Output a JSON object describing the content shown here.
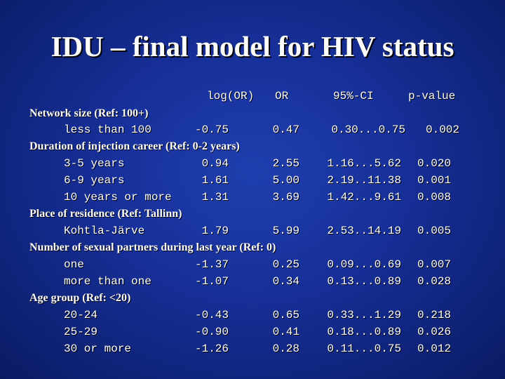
{
  "title": "IDU – final model for HIV status",
  "header": {
    "log_or": "log(OR)",
    "or": "OR",
    "ci": "95%-CI",
    "p": "p-value"
  },
  "groups": [
    {
      "label": "Network size (Ref: 100+)",
      "rows": [
        {
          "label": "less than 100",
          "log_or": "-0.75",
          "or": "0.47",
          "ci": "0.30...0.75",
          "p": "0.002"
        }
      ]
    },
    {
      "label": "Duration of injection career (Ref: 0-2 years)",
      "rows": [
        {
          "label": "3-5 years",
          "log_or": "0.94",
          "or": "2.55",
          "ci": "1.16...5.62",
          "p": "0.020"
        },
        {
          "label": "6-9 years",
          "log_or": "1.61",
          "or": "5.00",
          "ci": "2.19..11.38",
          "p": "0.001"
        },
        {
          "label": "10 years or more",
          "log_or": "1.31",
          "or": "3.69",
          "ci": "1.42...9.61",
          "p": "0.008"
        }
      ]
    },
    {
      "label": "Place of residence (Ref: Tallinn)",
      "rows": [
        {
          "label": "Kohtla-Järve",
          "log_or": "1.79",
          "or": "5.99",
          "ci": "2.53..14.19",
          "p": "0.005"
        }
      ]
    },
    {
      "label": "Number of sexual partners during last year (Ref: 0)",
      "rows": [
        {
          "label": "one",
          "log_or": "-1.37",
          "or": "0.25",
          "ci": "0.09...0.69",
          "p": "0.007"
        },
        {
          "label": "more than one",
          "log_or": "-1.07",
          "or": "0.34",
          "ci": "0.13...0.89",
          "p": "0.028"
        }
      ]
    },
    {
      "label": "Age group (Ref: <20)",
      "rows": [
        {
          "label": "20-24",
          "log_or": "-0.43",
          "or": "0.65",
          "ci": "0.33...1.29",
          "p": "0.218"
        },
        {
          "label": "25-29",
          "log_or": "-0.90",
          "or": "0.41",
          "ci": "0.18...0.89",
          "p": "0.026"
        },
        {
          "label": "30 or more",
          "log_or": "-1.26",
          "or": "0.28",
          "ci": "0.11...0.75",
          "p": "0.012"
        }
      ]
    }
  ]
}
